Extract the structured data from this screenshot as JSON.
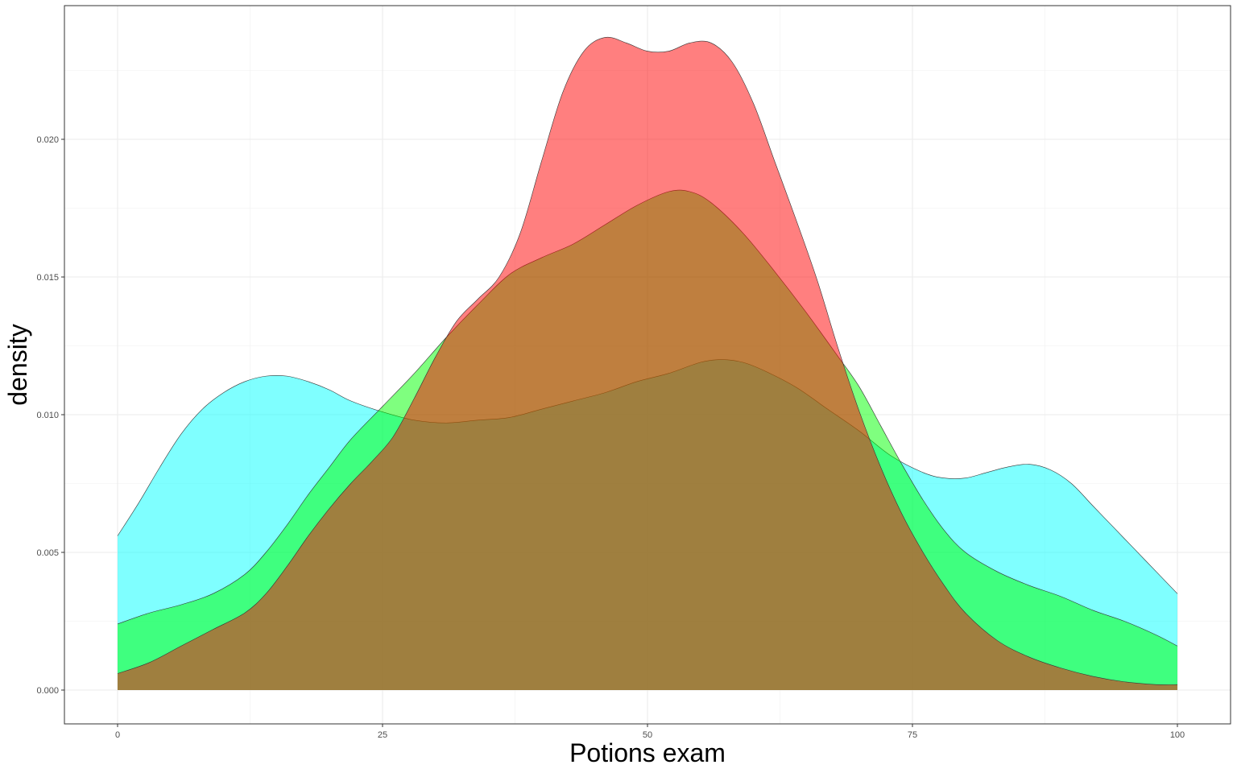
{
  "chart_data": {
    "type": "area",
    "chart_subtype": "density",
    "title": "",
    "xlabel": "Potions exam",
    "ylabel": "density",
    "xlim": [
      0,
      100
    ],
    "ylim": [
      0,
      0.024
    ],
    "x_ticks": [
      0,
      25,
      50,
      75,
      100
    ],
    "x_tick_labels": [
      "0",
      "25",
      "50",
      "75",
      "100"
    ],
    "y_ticks": [
      0,
      0.005,
      0.01,
      0.015,
      0.02
    ],
    "y_tick_labels": [
      "0.000",
      "0.005",
      "0.010",
      "0.015",
      "0.020"
    ],
    "grid": true,
    "legend": "none",
    "series": [
      {
        "color": "#00ffff",
        "opacity": 0.5,
        "points": [
          [
            0,
            0.0056
          ],
          [
            2,
            0.0068
          ],
          [
            4,
            0.0081
          ],
          [
            6,
            0.0093
          ],
          [
            8,
            0.0102
          ],
          [
            10,
            0.0108
          ],
          [
            12,
            0.0112
          ],
          [
            14,
            0.0114
          ],
          [
            16,
            0.0114
          ],
          [
            18,
            0.0112
          ],
          [
            20,
            0.0109
          ],
          [
            22,
            0.0105
          ],
          [
            25,
            0.0101
          ],
          [
            28,
            0.0098
          ],
          [
            31,
            0.0097
          ],
          [
            34,
            0.0098
          ],
          [
            37,
            0.0099
          ],
          [
            40,
            0.0102
          ],
          [
            43,
            0.0105
          ],
          [
            46,
            0.0108
          ],
          [
            49,
            0.0112
          ],
          [
            52,
            0.0115
          ],
          [
            55,
            0.0119
          ],
          [
            57,
            0.012
          ],
          [
            59,
            0.0119
          ],
          [
            61,
            0.0116
          ],
          [
            64,
            0.011
          ],
          [
            67,
            0.0102
          ],
          [
            70,
            0.0094
          ],
          [
            73,
            0.0085
          ],
          [
            76,
            0.0079
          ],
          [
            78,
            0.0077
          ],
          [
            80,
            0.0077
          ],
          [
            82,
            0.0079
          ],
          [
            84,
            0.0081
          ],
          [
            86,
            0.0082
          ],
          [
            88,
            0.008
          ],
          [
            90,
            0.0075
          ],
          [
            92,
            0.0067
          ],
          [
            94,
            0.0059
          ],
          [
            96,
            0.0051
          ],
          [
            98,
            0.0043
          ],
          [
            100,
            0.0035
          ]
        ]
      },
      {
        "color": "#00ff00",
        "opacity": 0.5,
        "points": [
          [
            0,
            0.0024
          ],
          [
            3,
            0.0028
          ],
          [
            6,
            0.0031
          ],
          [
            9,
            0.0035
          ],
          [
            12,
            0.0042
          ],
          [
            14,
            0.005
          ],
          [
            16,
            0.006
          ],
          [
            18,
            0.0071
          ],
          [
            20,
            0.0081
          ],
          [
            22,
            0.0091
          ],
          [
            25,
            0.0103
          ],
          [
            28,
            0.0115
          ],
          [
            31,
            0.0128
          ],
          [
            34,
            0.014
          ],
          [
            37,
            0.0151
          ],
          [
            40,
            0.0157
          ],
          [
            43,
            0.0162
          ],
          [
            46,
            0.0169
          ],
          [
            49,
            0.0176
          ],
          [
            52,
            0.0181
          ],
          [
            54,
            0.0181
          ],
          [
            56,
            0.0177
          ],
          [
            59,
            0.0166
          ],
          [
            62,
            0.0152
          ],
          [
            65,
            0.0137
          ],
          [
            68,
            0.0121
          ],
          [
            70,
            0.011
          ],
          [
            72,
            0.0096
          ],
          [
            74,
            0.0082
          ],
          [
            76,
            0.0069
          ],
          [
            78,
            0.0058
          ],
          [
            80,
            0.005
          ],
          [
            83,
            0.0043
          ],
          [
            86,
            0.0038
          ],
          [
            89,
            0.0034
          ],
          [
            92,
            0.0029
          ],
          [
            95,
            0.0025
          ],
          [
            98,
            0.002
          ],
          [
            100,
            0.0016
          ]
        ]
      },
      {
        "color": "#ff0000",
        "opacity": 0.5,
        "points": [
          [
            0,
            0.0006
          ],
          [
            3,
            0.001
          ],
          [
            6,
            0.0016
          ],
          [
            9,
            0.0022
          ],
          [
            12,
            0.0028
          ],
          [
            14,
            0.0035
          ],
          [
            16,
            0.0045
          ],
          [
            18,
            0.0056
          ],
          [
            20,
            0.0066
          ],
          [
            22,
            0.0075
          ],
          [
            24,
            0.0083
          ],
          [
            26,
            0.0092
          ],
          [
            28,
            0.0106
          ],
          [
            30,
            0.0121
          ],
          [
            32,
            0.0134
          ],
          [
            34,
            0.0142
          ],
          [
            36,
            0.015
          ],
          [
            38,
            0.0166
          ],
          [
            40,
            0.0192
          ],
          [
            42,
            0.0217
          ],
          [
            44,
            0.0232
          ],
          [
            46,
            0.0237
          ],
          [
            48,
            0.0235
          ],
          [
            50,
            0.0232
          ],
          [
            52,
            0.0232
          ],
          [
            54,
            0.0235
          ],
          [
            56,
            0.0235
          ],
          [
            58,
            0.0228
          ],
          [
            60,
            0.0213
          ],
          [
            62,
            0.0192
          ],
          [
            64,
            0.0171
          ],
          [
            66,
            0.0149
          ],
          [
            68,
            0.0124
          ],
          [
            70,
            0.0101
          ],
          [
            72,
            0.0081
          ],
          [
            74,
            0.0064
          ],
          [
            76,
            0.005
          ],
          [
            78,
            0.0038
          ],
          [
            80,
            0.0028
          ],
          [
            83,
            0.0018
          ],
          [
            86,
            0.0012
          ],
          [
            89,
            0.0008
          ],
          [
            92,
            0.0005
          ],
          [
            95,
            0.0003
          ],
          [
            98,
            0.0002
          ],
          [
            100,
            0.0002
          ]
        ]
      }
    ]
  }
}
